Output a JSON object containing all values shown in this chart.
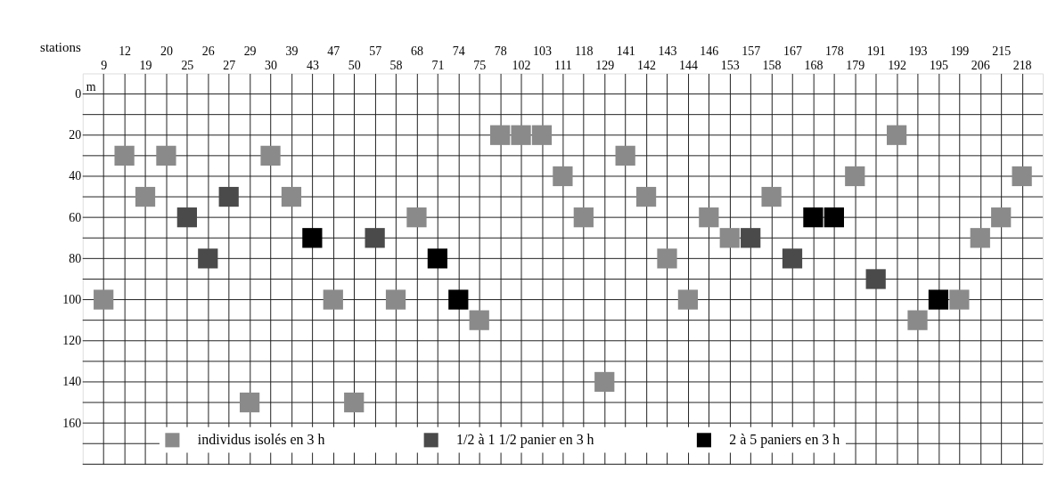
{
  "chart_data": {
    "type": "scatter",
    "xlabel": "stations",
    "ylabel": "m",
    "categories": [
      "9",
      "12",
      "19",
      "20",
      "25",
      "26",
      "27",
      "29",
      "30",
      "39",
      "43",
      "47",
      "50",
      "57",
      "58",
      "68",
      "71",
      "74",
      "75",
      "78",
      "102",
      "103",
      "111",
      "118",
      "129",
      "141",
      "142",
      "143",
      "144",
      "146",
      "153",
      "157",
      "158",
      "167",
      "168",
      "178",
      "179",
      "191",
      "192",
      "193",
      "195",
      "199",
      "206",
      "215",
      "218"
    ],
    "series": [
      {
        "name": "individus isolés en 3 h",
        "color": "#8a8a8a",
        "values": [
          100,
          30,
          50,
          30,
          null,
          null,
          null,
          150,
          30,
          50,
          null,
          100,
          150,
          null,
          100,
          60,
          null,
          null,
          110,
          20,
          20,
          20,
          40,
          60,
          140,
          30,
          50,
          80,
          100,
          60,
          70,
          null,
          50,
          null,
          null,
          null,
          40,
          null,
          20,
          110,
          null,
          100,
          70,
          60,
          40
        ]
      },
      {
        "name": "1/2 à 1 1/2 panier  en 3 h",
        "color": "#4a4a4a",
        "values": [
          null,
          null,
          null,
          null,
          60,
          80,
          50,
          null,
          null,
          null,
          null,
          null,
          null,
          70,
          null,
          null,
          null,
          null,
          null,
          null,
          null,
          null,
          null,
          null,
          null,
          null,
          null,
          null,
          null,
          null,
          null,
          70,
          null,
          80,
          null,
          null,
          null,
          90,
          null,
          null,
          null,
          null,
          null,
          null,
          null
        ]
      },
      {
        "name": "2 à 5 paniers en 3 h",
        "color": "#000000",
        "values": [
          null,
          null,
          null,
          null,
          null,
          null,
          null,
          null,
          null,
          null,
          70,
          null,
          null,
          null,
          null,
          null,
          80,
          100,
          null,
          null,
          null,
          null,
          null,
          null,
          null,
          null,
          null,
          null,
          null,
          null,
          null,
          null,
          null,
          null,
          60,
          60,
          null,
          null,
          null,
          null,
          100,
          null,
          null,
          null,
          null
        ]
      }
    ],
    "ylim": [
      180,
      -10
    ],
    "yticks": [
      0,
      {
        "value": 10,
        "label": null
      },
      20,
      {
        "value": 30,
        "label": null
      },
      40,
      {
        "value": 50,
        "label": null
      },
      60,
      {
        "value": 70,
        "label": null
      },
      80,
      {
        "value": 90,
        "label": null
      },
      100,
      {
        "value": 110,
        "label": null
      },
      120,
      {
        "value": 130,
        "label": null
      },
      140,
      {
        "value": 150,
        "label": null
      },
      160,
      {
        "value": 170,
        "label": null
      },
      {
        "value": 180,
        "label": null
      }
    ],
    "grid": true,
    "legend": "bottom",
    "marker": "square"
  }
}
